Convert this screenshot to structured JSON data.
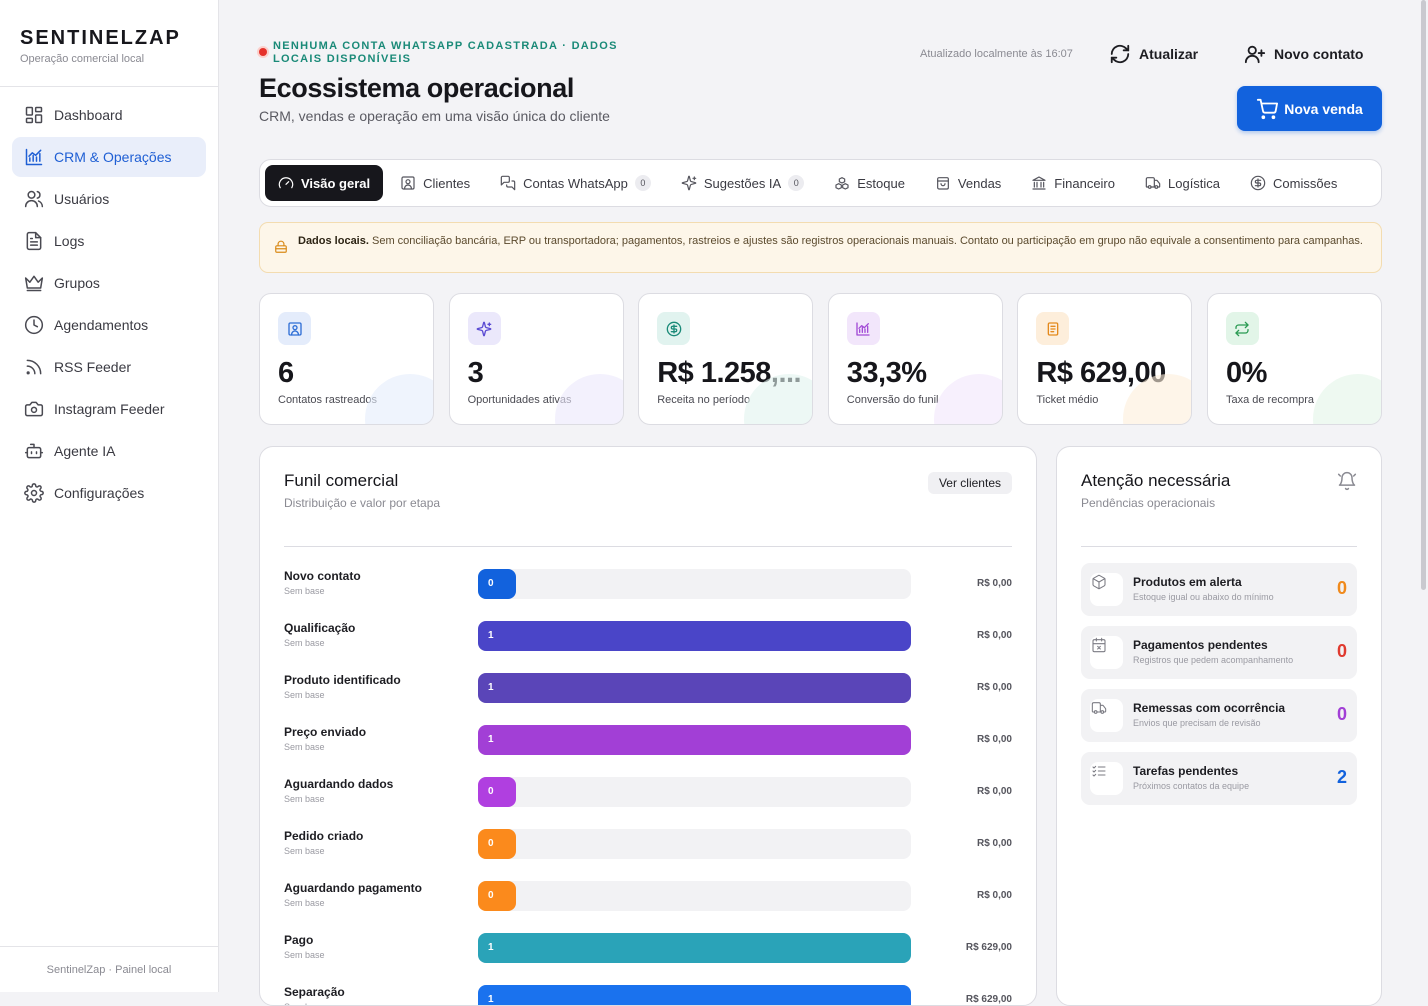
{
  "brand": {
    "title": "SENTINELZAP",
    "subtitle": "Operação comercial local"
  },
  "sidebar": {
    "items": [
      {
        "label": "Dashboard",
        "icon": "dashboard-icon"
      },
      {
        "label": "CRM & Operações",
        "icon": "chart-icon",
        "active": true
      },
      {
        "label": "Usuários",
        "icon": "users-icon"
      },
      {
        "label": "Logs",
        "icon": "file-icon"
      },
      {
        "label": "Grupos",
        "icon": "crown-icon"
      },
      {
        "label": "Agendamentos",
        "icon": "clock-icon"
      },
      {
        "label": "RSS Feeder",
        "icon": "rss-icon"
      },
      {
        "label": "Instagram Feeder",
        "icon": "camera-icon"
      },
      {
        "label": "Agente IA",
        "icon": "bot-icon"
      },
      {
        "label": "Configurações",
        "icon": "gear-icon"
      }
    ],
    "footer": "SentinelZap · Painel local"
  },
  "header": {
    "status": "NENHUMA CONTA WHATSAPP CADASTRADA · DADOS LOCAIS DISPONÍVEIS",
    "title": "Ecossistema operacional",
    "subtitle": "CRM, vendas e operação em uma visão única do cliente",
    "updated": "Atualizado localmente às 16:07",
    "refresh_label": "Atualizar",
    "new_contact_label": "Novo contato",
    "new_sale_label": "Nova venda"
  },
  "tabs": [
    {
      "label": "Visão geral",
      "icon": "gauge-icon",
      "active": true
    },
    {
      "label": "Clientes",
      "icon": "contact-icon"
    },
    {
      "label": "Contas WhatsApp",
      "icon": "chat-icon",
      "count": "0"
    },
    {
      "label": "Sugestões IA",
      "icon": "sparkles-icon",
      "count": "0"
    },
    {
      "label": "Estoque",
      "icon": "boxes-icon"
    },
    {
      "label": "Vendas",
      "icon": "bag-icon"
    },
    {
      "label": "Financeiro",
      "icon": "bank-icon"
    },
    {
      "label": "Logística",
      "icon": "truck-icon"
    },
    {
      "label": "Comissões",
      "icon": "dollar-icon"
    }
  ],
  "notice": {
    "bold": "Dados locais.",
    "text": "Sem conciliação bancária, ERP ou transportadora; pagamentos, rastreios e ajustes são registros operacionais manuais. Contato ou participação em grupo não equivale a consentimento para campanhas."
  },
  "kpis": [
    {
      "value": "6",
      "label": "Contatos rastreados",
      "icon": "contact-icon",
      "color": "#2f6fd6",
      "bg": "#e4ecfb"
    },
    {
      "value": "3",
      "label": "Oportunidades ativas",
      "icon": "sparkles-icon",
      "color": "#5b4bd3",
      "bg": "#ebe8fb"
    },
    {
      "value": "R$ 1.258,...",
      "label": "Receita no período",
      "icon": "dollar-icon",
      "color": "#1a8a78",
      "bg": "#e1f3ef"
    },
    {
      "value": "33,3%",
      "label": "Conversão do funil",
      "icon": "chart-icon",
      "color": "#a24bd6",
      "bg": "#f2e6fb"
    },
    {
      "value": "R$ 629,00",
      "label": "Ticket médio",
      "icon": "receipt-icon",
      "color": "#e48a1e",
      "bg": "#fdeedb"
    },
    {
      "value": "0%",
      "label": "Taxa de recompra",
      "icon": "repeat-icon",
      "color": "#2a9a52",
      "bg": "#e2f5e8"
    }
  ],
  "funnel": {
    "title": "Funil comercial",
    "subtitle": "Distribuição e valor por etapa",
    "button": "Ver clientes",
    "max_count": 1,
    "stages": [
      {
        "name": "Novo contato",
        "base": "Sem base",
        "count": 0,
        "display": "0",
        "amount": "R$ 0,00",
        "color": "#1262dd"
      },
      {
        "name": "Qualificação",
        "base": "Sem base",
        "count": 1,
        "display": "1",
        "amount": "R$ 0,00",
        "color": "#4a45c8"
      },
      {
        "name": "Produto identificado",
        "base": "Sem base",
        "count": 1,
        "display": "1",
        "amount": "R$ 0,00",
        "color": "#5a45b8"
      },
      {
        "name": "Preço enviado",
        "base": "Sem base",
        "count": 1,
        "display": "1",
        "amount": "R$ 0,00",
        "color": "#a23fd6"
      },
      {
        "name": "Aguardando dados",
        "base": "Sem base",
        "count": 0,
        "display": "0",
        "amount": "R$ 0,00",
        "color": "#b03fe0"
      },
      {
        "name": "Pedido criado",
        "base": "Sem base",
        "count": 0,
        "display": "0",
        "amount": "R$ 0,00",
        "color": "#fb8a1c"
      },
      {
        "name": "Aguardando pagamento",
        "base": "Sem base",
        "count": 0,
        "display": "0",
        "amount": "R$ 0,00",
        "color": "#fb8a1c"
      },
      {
        "name": "Pago",
        "base": "Sem base",
        "count": 1,
        "display": "1",
        "amount": "R$ 629,00",
        "color": "#2aa3b8"
      },
      {
        "name": "Separação",
        "base": "Sem base",
        "count": 1,
        "display": "1",
        "amount": "R$ 629,00",
        "color": "#1a72ee"
      }
    ]
  },
  "attention": {
    "title": "Atenção necessária",
    "subtitle": "Pendências operacionais",
    "items": [
      {
        "title": "Produtos em alerta",
        "sub": "Estoque igual ou abaixo do mínimo",
        "count": "0",
        "color": "#f08a1c",
        "icon": "package-icon"
      },
      {
        "title": "Pagamentos pendentes",
        "sub": "Registros que pedem acompanhamento",
        "count": "0",
        "color": "#e03a2f",
        "icon": "calendar-x-icon"
      },
      {
        "title": "Remessas com ocorrência",
        "sub": "Envios que precisam de revisão",
        "count": "0",
        "color": "#a23fd6",
        "icon": "truck-icon"
      },
      {
        "title": "Tarefas pendentes",
        "sub": "Próximos contatos da equipe",
        "count": "2",
        "color": "#1262dd",
        "icon": "list-check-icon"
      }
    ]
  }
}
